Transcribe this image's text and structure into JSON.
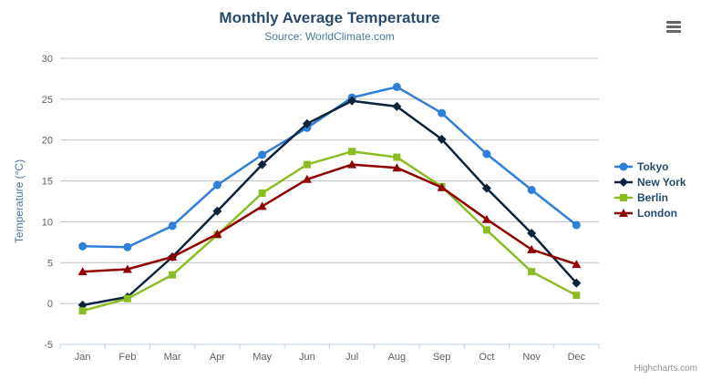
{
  "title": {
    "text": "Monthly Average Temperature"
  },
  "subtitle": {
    "text": "Source: WorldClimate.com"
  },
  "credit": "Highcharts.com",
  "export_menu": {
    "icon": "hamburger-icon"
  },
  "colors": {
    "background": "#ffffff",
    "title_text": "#274b6d",
    "subtitle_text": "#4d759e",
    "axis_title_text": "#4d759e",
    "axis_label_text": "#606060",
    "grid_line": "#c0c0c0",
    "axis_line": "#c0d0e0",
    "legend_text": "#274b6d",
    "credit_text": "#909090",
    "menu_icon": "#666666"
  },
  "chart_data": {
    "type": "line",
    "title": "Monthly Average Temperature",
    "subtitle": "Source: WorldClimate.com",
    "xlabel": "",
    "ylabel": "Temperature (°C)",
    "ylim": [
      -5,
      30
    ],
    "ytick_interval": 5,
    "yticks": [
      -5,
      0,
      5,
      10,
      15,
      20,
      25,
      30
    ],
    "grid": true,
    "legend_position": "right",
    "categories": [
      "Jan",
      "Feb",
      "Mar",
      "Apr",
      "May",
      "Jun",
      "Jul",
      "Aug",
      "Sep",
      "Oct",
      "Nov",
      "Dec"
    ],
    "series": [
      {
        "name": "Tokyo",
        "color": "#2f7ed8",
        "marker": "circle",
        "values": [
          7.0,
          6.9,
          9.5,
          14.5,
          18.2,
          21.5,
          25.2,
          26.5,
          23.3,
          18.3,
          13.9,
          9.6
        ]
      },
      {
        "name": "New York",
        "color": "#0d233a",
        "marker": "diamond",
        "values": [
          -0.2,
          0.8,
          5.7,
          11.3,
          17.0,
          22.0,
          24.8,
          24.1,
          20.1,
          14.1,
          8.6,
          2.5
        ]
      },
      {
        "name": "Berlin",
        "color": "#8bbc21",
        "marker": "square",
        "values": [
          -0.9,
          0.6,
          3.5,
          8.4,
          13.5,
          17.0,
          18.6,
          17.9,
          14.3,
          9.0,
          3.9,
          1.0
        ]
      },
      {
        "name": "London",
        "color": "#910000",
        "marker": "triangle",
        "values": [
          3.9,
          4.2,
          5.7,
          8.5,
          11.9,
          15.2,
          17.0,
          16.6,
          14.2,
          10.3,
          6.6,
          4.8
        ]
      }
    ]
  }
}
